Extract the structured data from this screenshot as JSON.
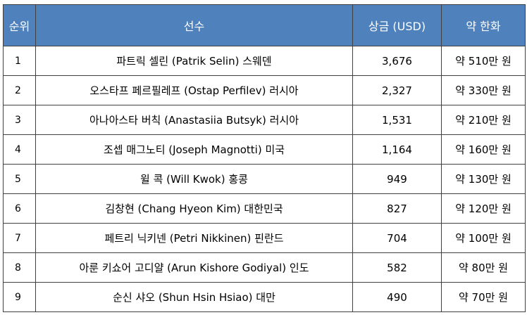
{
  "table": {
    "headers": {
      "rank": "순위",
      "player": "선수",
      "prize": "상금 (USD)",
      "krw": "약 한화"
    },
    "rows": [
      {
        "rank": "1",
        "player": "파트릭 셀린 (Patrik Selin) 스웨덴",
        "prize": "3,676",
        "krw": "약 510만 원"
      },
      {
        "rank": "2",
        "player": "오스타프 페르필레프 (Ostap Perfilev) 러시아",
        "prize": "2,327",
        "krw": "약 330만 원"
      },
      {
        "rank": "3",
        "player": "아나아스타 버칙 (Anastasiia Butsyk) 러시아",
        "prize": "1,531",
        "krw": "약 210만 원"
      },
      {
        "rank": "4",
        "player": "조셉 매그노티 (Joseph Magnotti) 미국",
        "prize": "1,164",
        "krw": "약 160만 원"
      },
      {
        "rank": "5",
        "player": "윌 콕 (Will Kwok) 홍콩",
        "prize": "949",
        "krw": "약 130만 원"
      },
      {
        "rank": "6",
        "player": "김창현 (Chang Hyeon Kim) 대한민국",
        "prize": "827",
        "krw": "약 120만 원"
      },
      {
        "rank": "7",
        "player": "페트리 닉키넨 (Petri Nikkinen) 핀란드",
        "prize": "704",
        "krw": "약 100만 원"
      },
      {
        "rank": "8",
        "player": "아룬 키쇼어 고디얄 (Arun Kishore Godiyal) 인도",
        "prize": "582",
        "krw": "약 80만 원"
      },
      {
        "rank": "9",
        "player": "순신 샤오 (Shun Hsin Hsiao) 대만",
        "prize": "490",
        "krw": "약 70만 원"
      }
    ]
  }
}
